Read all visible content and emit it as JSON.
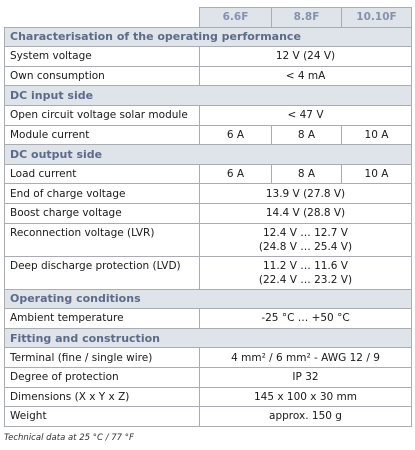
{
  "table": {
    "header": [
      "6.6F",
      "8.8F",
      "10.10F"
    ],
    "rows": [
      {
        "section": "Characterisation of the operating performance"
      },
      {
        "label": "System voltage",
        "values": [
          "12 V (24 V)"
        ]
      },
      {
        "label": "Own consumption",
        "values": [
          "< 4 mA"
        ]
      },
      {
        "section": "DC input side"
      },
      {
        "label": "Open circuit voltage solar module",
        "values": [
          "< 47 V"
        ]
      },
      {
        "label": "Module current",
        "values": [
          "6 A",
          "8 A",
          "10 A"
        ]
      },
      {
        "section": "DC output side"
      },
      {
        "label": "Load current",
        "values": [
          "6 A",
          "8 A",
          "10 A"
        ]
      },
      {
        "label": "End of charge voltage",
        "values": [
          "13.9 V (27.8 V)"
        ]
      },
      {
        "label": "Boost charge voltage",
        "values": [
          "14.4 V (28.8 V)"
        ]
      },
      {
        "label": "Reconnection voltage (LVR)",
        "values": [
          [
            "12.4 V … 12.7 V",
            "(24.8 V … 25.4 V)"
          ]
        ]
      },
      {
        "label": "Deep discharge protection (LVD)",
        "values": [
          [
            "11.2 V … 11.6 V",
            "(22.4 V … 23.2 V)"
          ]
        ]
      },
      {
        "section": "Operating conditions"
      },
      {
        "label": "Ambient temperature",
        "values": [
          "-25 °C … +50 °C"
        ]
      },
      {
        "section": "Fitting and construction"
      },
      {
        "label": "Terminal (fine / single wire)",
        "values": [
          "4 mm² / 6 mm² - AWG 12 / 9"
        ]
      },
      {
        "label": "Degree of protection",
        "values": [
          "IP 32"
        ]
      },
      {
        "label": "Dimensions (X x Y x Z)",
        "values": [
          "145 x 100 x 30 mm"
        ]
      },
      {
        "label": "Weight",
        "values": [
          "approx. 150 g"
        ]
      }
    ]
  },
  "footnote": "Technical data at 25 °C / 77 °F"
}
